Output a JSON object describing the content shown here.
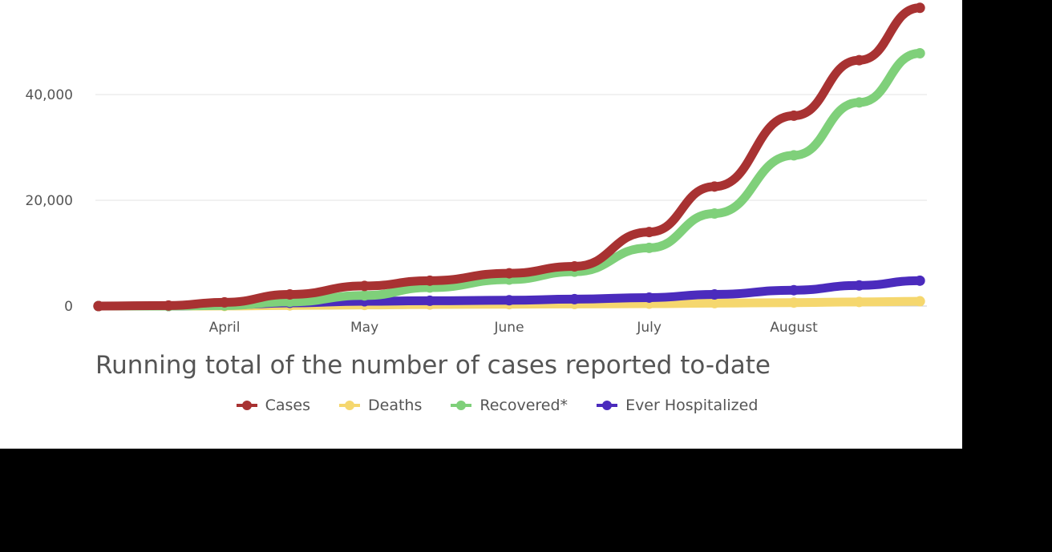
{
  "chart_data": {
    "type": "line",
    "title": "Running total of the number of cases reported to-date",
    "xlabel": "",
    "ylabel": "",
    "ylim": [
      0,
      57000
    ],
    "yticks": [
      {
        "value": 0,
        "label": "0"
      },
      {
        "value": 20000,
        "label": "20,000"
      },
      {
        "value": 40000,
        "label": "40,000"
      }
    ],
    "xticks": [
      {
        "date": "2020-04-01",
        "label": "April"
      },
      {
        "date": "2020-05-01",
        "label": "May"
      },
      {
        "date": "2020-06-01",
        "label": "June"
      },
      {
        "date": "2020-07-01",
        "label": "July"
      },
      {
        "date": "2020-08-01",
        "label": "August"
      }
    ],
    "grid": true,
    "legend_position": "bottom",
    "x": [
      "2020-03-05",
      "2020-03-20",
      "2020-04-01",
      "2020-04-15",
      "2020-05-01",
      "2020-05-15",
      "2020-06-01",
      "2020-06-15",
      "2020-07-01",
      "2020-07-15",
      "2020-08-01",
      "2020-08-15",
      "2020-08-28"
    ],
    "series": [
      {
        "name": "Cases",
        "color": "#a83232",
        "values": [
          0,
          100,
          700,
          2200,
          3800,
          4800,
          6200,
          7500,
          14000,
          22600,
          36000,
          46500,
          56400
        ]
      },
      {
        "name": "Deaths",
        "color": "#f5d76e",
        "values": [
          0,
          0,
          10,
          120,
          200,
          280,
          350,
          400,
          450,
          550,
          650,
          780,
          900
        ]
      },
      {
        "name": "Recovered*",
        "color": "#7fd07a",
        "values": [
          0,
          0,
          100,
          800,
          2000,
          3500,
          5000,
          6500,
          11000,
          17500,
          28500,
          38500,
          47800
        ]
      },
      {
        "name": "Ever Hospitalized",
        "color": "#4b2bbd",
        "values": [
          0,
          0,
          200,
          600,
          900,
          1000,
          1100,
          1300,
          1600,
          2200,
          3000,
          3900,
          4800
        ]
      }
    ]
  }
}
